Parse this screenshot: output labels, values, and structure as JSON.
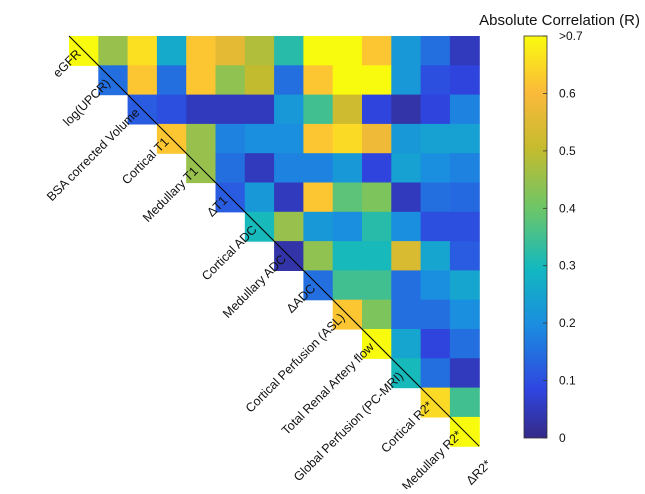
{
  "chart_data": {
    "type": "heatmap",
    "title": "",
    "colorbar_label": "Absolute Correlation (R)",
    "colorbar_ticks": [
      "0",
      "0.1",
      "0.2",
      "0.3",
      "0.4",
      "0.5",
      "0.6",
      ">0.7"
    ],
    "value_range": [
      0,
      0.7
    ],
    "colormap": "parula",
    "layout": "upper-triangle",
    "variables": [
      "eGFR",
      "log(UPCR)",
      "BSA corrected Volume",
      "Cortical T1",
      "Medullary T1",
      "ΔT1",
      "Cortical ADC",
      "Medullary ADC",
      "ΔADC",
      "Cortical Perfusion (ASL)",
      "Total Renal Artery flow",
      "Global Perfusion (PC-MRI)",
      "Cortical R2*",
      "Medullary R2*",
      "ΔR2*"
    ],
    "values": [
      [
        0.7,
        0.45,
        0.66,
        0.26,
        0.62,
        0.56,
        0.48,
        0.32,
        0.7,
        0.7,
        0.62,
        0.22,
        0.15,
        0.05
      ],
      [
        null,
        0.15,
        0.62,
        0.15,
        0.62,
        0.44,
        0.5,
        0.15,
        0.62,
        0.7,
        0.7,
        0.22,
        0.1,
        0.08
      ],
      [
        null,
        null,
        0.12,
        0.1,
        0.05,
        0.05,
        0.05,
        0.22,
        0.35,
        0.52,
        0.08,
        0.03,
        0.08,
        0.18
      ],
      [
        null,
        null,
        null,
        0.62,
        0.45,
        0.18,
        0.2,
        0.2,
        0.62,
        0.65,
        0.58,
        0.22,
        0.24,
        0.24
      ],
      [
        null,
        null,
        null,
        null,
        0.45,
        0.15,
        0.05,
        0.18,
        0.18,
        0.22,
        0.08,
        0.24,
        0.2,
        0.18
      ],
      [
        null,
        null,
        null,
        null,
        null,
        0.12,
        0.22,
        0.05,
        0.62,
        0.38,
        0.42,
        0.05,
        0.15,
        0.14
      ],
      [
        null,
        null,
        null,
        null,
        null,
        null,
        0.3,
        0.45,
        0.22,
        0.2,
        0.32,
        0.2,
        0.1,
        0.1
      ],
      [
        null,
        null,
        null,
        null,
        null,
        null,
        null,
        0.03,
        0.44,
        0.3,
        0.3,
        0.54,
        0.25,
        0.12
      ],
      [
        null,
        null,
        null,
        null,
        null,
        null,
        null,
        null,
        0.15,
        0.35,
        0.35,
        0.15,
        0.2,
        0.25
      ],
      [
        null,
        null,
        null,
        null,
        null,
        null,
        null,
        null,
        null,
        0.62,
        0.42,
        0.15,
        0.15,
        0.2
      ],
      [
        null,
        null,
        null,
        null,
        null,
        null,
        null,
        null,
        null,
        null,
        0.7,
        0.25,
        0.08,
        0.15
      ],
      [
        null,
        null,
        null,
        null,
        null,
        null,
        null,
        null,
        null,
        null,
        null,
        0.3,
        0.15,
        0.05
      ],
      [
        null,
        null,
        null,
        null,
        null,
        null,
        null,
        null,
        null,
        null,
        null,
        null,
        0.65,
        0.35
      ],
      [
        null,
        null,
        null,
        null,
        null,
        null,
        null,
        null,
        null,
        null,
        null,
        null,
        null,
        0.7
      ]
    ]
  }
}
